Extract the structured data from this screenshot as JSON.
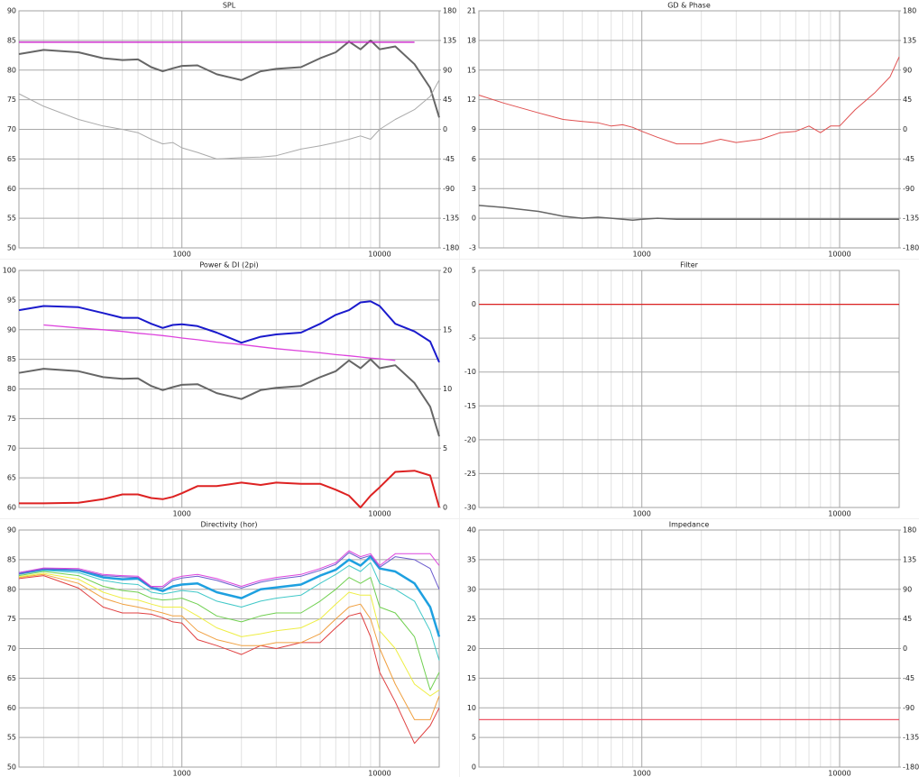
{
  "chart_data": [
    {
      "type": "line",
      "title": "SPL",
      "log_x": true,
      "grid": true,
      "x": [
        150,
        200,
        300,
        400,
        500,
        600,
        700,
        800,
        900,
        1000,
        1200,
        1500,
        2000,
        2500,
        3000,
        4000,
        5000,
        6000,
        7000,
        8000,
        9000,
        10000,
        12000,
        15000,
        18000,
        20000
      ],
      "xlim": [
        150,
        20000
      ],
      "xticks": [
        1000,
        10000
      ],
      "ylim": [
        50,
        90
      ],
      "yticks": [
        50,
        55,
        60,
        65,
        70,
        75,
        80,
        85,
        90
      ],
      "y2lim": [
        -180,
        180
      ],
      "y2ticks": [
        -180,
        -135,
        -90,
        -45,
        0,
        45,
        90,
        135,
        180
      ],
      "series": [
        {
          "color": "#666666",
          "line_width": 2,
          "values": [
            82.7,
            83.4,
            83,
            82,
            81.7,
            81.8,
            80.5,
            79.8,
            80.3,
            80.7,
            80.8,
            79.3,
            78.3,
            79.8,
            80.2,
            80.5,
            82,
            83,
            84.8,
            83.5,
            85,
            83.5,
            84,
            81,
            77,
            72
          ]
        },
        {
          "color": "#cc22cc",
          "line_width": 1.3,
          "values": [
            84.7,
            84.7,
            84.7,
            84.7,
            84.7,
            84.7,
            84.7,
            84.7,
            84.7,
            84.7,
            84.7,
            84.7,
            84.7,
            84.7,
            84.7,
            84.7,
            84.7,
            84.7,
            84.7,
            84.7,
            84.7,
            84.7,
            84.7,
            84.7,
            null,
            null
          ]
        },
        {
          "color": "#aaaaaa",
          "line_width": 1,
          "axis": "y2",
          "values": [
            54,
            35,
            15,
            5,
            0,
            -5,
            -15,
            -22,
            -20,
            -28,
            -35,
            -45,
            -43,
            -42,
            -40,
            -30,
            -25,
            -20,
            -15,
            -10,
            -15,
            0,
            15,
            30,
            50,
            75
          ]
        }
      ]
    },
    {
      "type": "line",
      "title": "GD & Phase",
      "log_x": true,
      "grid": true,
      "x": [
        150,
        200,
        300,
        400,
        500,
        600,
        700,
        800,
        900,
        1000,
        1200,
        1500,
        2000,
        2500,
        3000,
        4000,
        5000,
        6000,
        7000,
        8000,
        9000,
        10000,
        12000,
        15000,
        18000,
        20000
      ],
      "xlim": [
        150,
        20000
      ],
      "xticks": [
        1000,
        10000
      ],
      "ylim": [
        -3,
        21
      ],
      "yticks": [
        -3,
        0,
        3,
        6,
        9,
        12,
        15,
        18,
        21
      ],
      "y2lim": [
        -180,
        180
      ],
      "y2ticks": [
        -180,
        -135,
        -90,
        -45,
        0,
        45,
        90,
        135,
        180
      ],
      "series": [
        {
          "color": "#e05050",
          "line_width": 1,
          "axis": "y2",
          "values": [
            52,
            40,
            25,
            15,
            12,
            10,
            5,
            7,
            3,
            -3,
            -12,
            -22,
            -22,
            -15,
            -20,
            -15,
            -5,
            -3,
            5,
            -5,
            5,
            5,
            30,
            55,
            80,
            110
          ]
        },
        {
          "color": "#666666",
          "line_width": 1.5,
          "values": [
            1.3,
            1.1,
            0.7,
            0.2,
            0,
            0.1,
            0,
            -0.1,
            -0.2,
            -0.1,
            0,
            -0.1,
            -0.1,
            -0.1,
            -0.1,
            -0.1,
            -0.1,
            -0.1,
            -0.1,
            -0.1,
            -0.1,
            -0.1,
            -0.1,
            -0.1,
            -0.1,
            -0.1
          ]
        }
      ]
    },
    {
      "type": "line",
      "title": "Power & DI (2pi)",
      "log_x": true,
      "grid": true,
      "x": [
        150,
        200,
        300,
        400,
        500,
        600,
        700,
        800,
        900,
        1000,
        1200,
        1500,
        2000,
        2500,
        3000,
        4000,
        5000,
        6000,
        7000,
        8000,
        9000,
        10000,
        12000,
        15000,
        18000,
        20000
      ],
      "xlim": [
        150,
        20000
      ],
      "xticks": [
        1000,
        10000
      ],
      "ylim": [
        60,
        100
      ],
      "yticks": [
        60,
        65,
        70,
        75,
        80,
        85,
        90,
        95,
        100
      ],
      "y2lim": [
        0,
        20
      ],
      "y2ticks": [
        0,
        5,
        10,
        15,
        20
      ],
      "series": [
        {
          "color": "#1a1acc",
          "line_width": 2,
          "values": [
            93.3,
            94,
            93.8,
            92.8,
            92,
            92,
            91,
            90.3,
            90.8,
            90.9,
            90.6,
            89.5,
            87.8,
            88.8,
            89.2,
            89.5,
            91,
            92.5,
            93.3,
            94.6,
            94.8,
            94,
            91,
            89.7,
            88,
            84.5
          ]
        },
        {
          "color": "#dd44dd",
          "line_width": 1.3,
          "values": [
            null,
            90.8,
            90.3,
            90,
            89.7,
            89.4,
            89.2,
            89,
            88.8,
            88.6,
            88.3,
            87.9,
            87.5,
            87.1,
            86.8,
            86.4,
            86.1,
            85.8,
            85.6,
            85.4,
            85.2,
            85.1,
            84.8,
            null,
            null,
            null
          ]
        },
        {
          "color": "#666666",
          "line_width": 2,
          "values": [
            82.7,
            83.4,
            83,
            82,
            81.7,
            81.8,
            80.5,
            79.8,
            80.3,
            80.7,
            80.8,
            79.3,
            78.3,
            79.8,
            80.2,
            80.5,
            82,
            83,
            84.8,
            83.5,
            85,
            83.5,
            84,
            81,
            77,
            72
          ]
        },
        {
          "color": "#dd2222",
          "line_width": 2,
          "axis": "y2",
          "values": [
            0.35,
            0.35,
            0.4,
            0.7,
            1.1,
            1.1,
            0.8,
            0.7,
            0.9,
            1.2,
            1.8,
            1.8,
            2.1,
            1.9,
            2.1,
            2,
            2,
            1.5,
            1,
            0,
            1,
            1.7,
            3,
            3.1,
            2.7,
            0
          ]
        }
      ]
    },
    {
      "type": "line",
      "title": "Filter",
      "log_x": true,
      "grid": true,
      "x": [
        150,
        20000
      ],
      "xlim": [
        150,
        20000
      ],
      "xticks": [
        1000,
        10000
      ],
      "ylim": [
        -30,
        5
      ],
      "yticks": [
        -30,
        -25,
        -20,
        -15,
        -10,
        -5,
        0,
        5
      ],
      "series": [
        {
          "color": "#dd2222",
          "line_width": 1.3,
          "values": [
            0,
            0
          ]
        }
      ]
    },
    {
      "type": "line",
      "title": "Directivity (hor)",
      "log_x": true,
      "grid": true,
      "x": [
        150,
        200,
        300,
        400,
        500,
        600,
        700,
        800,
        900,
        1000,
        1200,
        1500,
        2000,
        2500,
        3000,
        4000,
        5000,
        6000,
        7000,
        8000,
        9000,
        10000,
        12000,
        15000,
        18000,
        20000
      ],
      "xlim": [
        150,
        20000
      ],
      "xticks": [
        1000,
        10000
      ],
      "ylim": [
        50,
        90
      ],
      "yticks": [
        50,
        55,
        60,
        65,
        70,
        75,
        80,
        85,
        90
      ],
      "series": [
        {
          "color": "#e04040",
          "line_width": 1,
          "values": [
            81.8,
            82.3,
            80.2,
            77,
            76,
            76,
            75.8,
            75.2,
            74.5,
            74.3,
            71.5,
            70.5,
            69,
            70.5,
            70,
            71,
            71,
            73.5,
            75.5,
            76,
            72,
            66,
            61,
            54,
            57,
            60
          ]
        },
        {
          "color": "#f0a040",
          "line_width": 1,
          "values": [
            82,
            82.5,
            81,
            78.5,
            77.5,
            77,
            76.5,
            76,
            75.5,
            75.5,
            73,
            71.5,
            70.5,
            70.5,
            71,
            71,
            72.5,
            75,
            77,
            77.5,
            75,
            70,
            64,
            58,
            58,
            62
          ]
        },
        {
          "color": "#eeee44",
          "line_width": 1,
          "values": [
            82.1,
            82.7,
            81.7,
            79.5,
            78.5,
            78.2,
            77.5,
            77,
            77,
            77,
            75.5,
            73.5,
            72,
            72.5,
            73,
            73.5,
            75,
            77.5,
            79.5,
            79,
            79,
            73,
            70,
            64,
            62,
            63
          ]
        },
        {
          "color": "#70d050",
          "line_width": 1,
          "values": [
            82.3,
            83,
            82.3,
            80.5,
            79.8,
            79.5,
            78.5,
            78.2,
            78.3,
            78.5,
            77.5,
            75.5,
            74.5,
            75.5,
            76,
            76,
            78,
            80,
            82,
            81,
            82,
            77,
            76,
            72,
            63,
            66
          ]
        },
        {
          "color": "#40c8c8",
          "line_width": 1,
          "values": [
            82.5,
            83.2,
            82.8,
            81.5,
            81,
            80.8,
            79.5,
            79.2,
            79.5,
            79.8,
            79.5,
            78,
            77,
            78,
            78.5,
            79,
            81,
            82.5,
            84,
            83,
            84.5,
            81,
            80,
            78,
            73,
            68
          ]
        },
        {
          "color": "#1ea0e0",
          "line_width": 2.5,
          "values": [
            82.7,
            83.4,
            83.2,
            82,
            81.7,
            81.8,
            80.3,
            79.7,
            80.5,
            80.8,
            81,
            79.5,
            78.5,
            80,
            80.3,
            80.8,
            82.3,
            83.3,
            85,
            84,
            85.5,
            83.5,
            83,
            81,
            77,
            72
          ]
        },
        {
          "color": "#6a5acd",
          "line_width": 1,
          "values": [
            82.6,
            83.4,
            83.3,
            82.3,
            82.1,
            82,
            80.3,
            80.2,
            81.5,
            81.9,
            82.2,
            81.5,
            80.2,
            81.2,
            81.7,
            82.2,
            83.2,
            84.2,
            86.2,
            85.2,
            85.7,
            83.7,
            85.5,
            85,
            83.5,
            80
          ]
        },
        {
          "color": "#dd44dd",
          "line_width": 1,
          "values": [
            82.8,
            83.6,
            83.5,
            82.5,
            82.3,
            82.2,
            80.5,
            80.5,
            81.8,
            82.2,
            82.5,
            81.8,
            80.5,
            81.5,
            82,
            82.5,
            83.5,
            84.5,
            86.5,
            85.5,
            86,
            84,
            86,
            86,
            86,
            84
          ]
        }
      ]
    },
    {
      "type": "line",
      "title": "Impedance",
      "log_x": true,
      "grid": true,
      "x": [
        150,
        20000
      ],
      "xlim": [
        150,
        20000
      ],
      "xticks": [
        1000,
        10000
      ],
      "ylim": [
        0,
        40
      ],
      "yticks": [
        0,
        5,
        10,
        15,
        20,
        25,
        30,
        35,
        40
      ],
      "y2lim": [
        -180,
        180
      ],
      "y2ticks": [
        -180,
        -135,
        -90,
        -45,
        0,
        45,
        90,
        135,
        180
      ],
      "series": [
        {
          "color": "#ee5566",
          "line_width": 1.3,
          "values": [
            8,
            8
          ]
        }
      ]
    }
  ]
}
